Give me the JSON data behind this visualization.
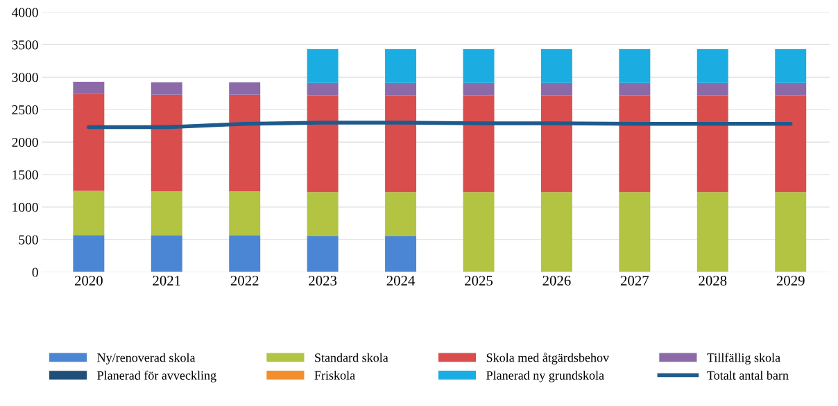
{
  "chart_data": {
    "type": "bar",
    "stacked": true,
    "categories": [
      "2020",
      "2021",
      "2022",
      "2023",
      "2024",
      "2025",
      "2026",
      "2027",
      "2028",
      "2029"
    ],
    "series": [
      {
        "name": "Ny/renoverad skola",
        "color": "#4a86d4",
        "values": [
          570,
          560,
          560,
          550,
          550,
          null,
          null,
          null,
          null,
          null
        ]
      },
      {
        "name": "Standard skola",
        "color": "#b2c441",
        "values": [
          680,
          680,
          680,
          680,
          680,
          1230,
          1230,
          1230,
          1230,
          1230
        ]
      },
      {
        "name": "Skola med åtgärdsbehov",
        "color": "#d94d4c",
        "values": [
          1490,
          1490,
          1490,
          1490,
          1490,
          1490,
          1490,
          1490,
          1490,
          1490
        ]
      },
      {
        "name": "Tillfällig skola",
        "color": "#8c6aa8",
        "values": [
          190,
          190,
          190,
          190,
          190,
          190,
          190,
          190,
          190,
          190
        ]
      },
      {
        "name": "Planerad för avveckling",
        "color": "#1f4e79",
        "values": [
          null,
          null,
          null,
          null,
          null,
          null,
          null,
          null,
          null,
          null
        ]
      },
      {
        "name": "Friskola",
        "color": "#f28e2b",
        "values": [
          null,
          null,
          null,
          null,
          null,
          null,
          null,
          null,
          null,
          null
        ]
      },
      {
        "name": "Planerad ny grundskola",
        "color": "#1bade2",
        "values": [
          null,
          null,
          null,
          520,
          520,
          520,
          520,
          520,
          520,
          520
        ]
      },
      {
        "name": "Totalt antal barn",
        "type": "line",
        "color": "#1f5a8c",
        "values": [
          2230,
          2230,
          2280,
          2300,
          2300,
          2290,
          2290,
          2280,
          2280,
          2280
        ]
      }
    ],
    "ylim": [
      0,
      4000
    ],
    "yticks": [
      0,
      500,
      1000,
      1500,
      2000,
      2500,
      3000,
      3500,
      4000
    ],
    "grid": "y",
    "legend": "bottom",
    "marker": "none",
    "line_style": "solid"
  }
}
